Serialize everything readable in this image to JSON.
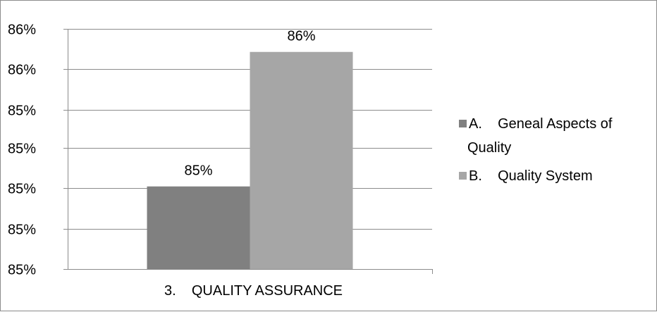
{
  "chart_data": {
    "type": "bar",
    "title": "",
    "xlabel": "",
    "ylabel": "",
    "categories": [
      "3.    QUALITY ASSURANCE"
    ],
    "series": [
      {
        "name": "A.    Geneal Aspects of Quality",
        "values": [
          0.8493
        ],
        "label": "85%",
        "color": "#808080"
      },
      {
        "name": "B.    Quality System",
        "values": [
          0.8563
        ],
        "label": "86%",
        "color": "#a6a6a6"
      }
    ],
    "ylim": [
      0.845,
      0.8575
    ],
    "yticks": [
      0.845,
      0.8475,
      0.85,
      0.8525,
      0.855,
      0.8575
    ],
    "ytick_labels": [
      "85%",
      "85%",
      "85%",
      "85%",
      "85%",
      "86%",
      "86%"
    ],
    "ytick_values": [
      0.845,
      0.8471,
      0.8492,
      0.8513,
      0.8533,
      0.8554,
      0.8575
    ],
    "grid": true,
    "legend_position": "right"
  }
}
